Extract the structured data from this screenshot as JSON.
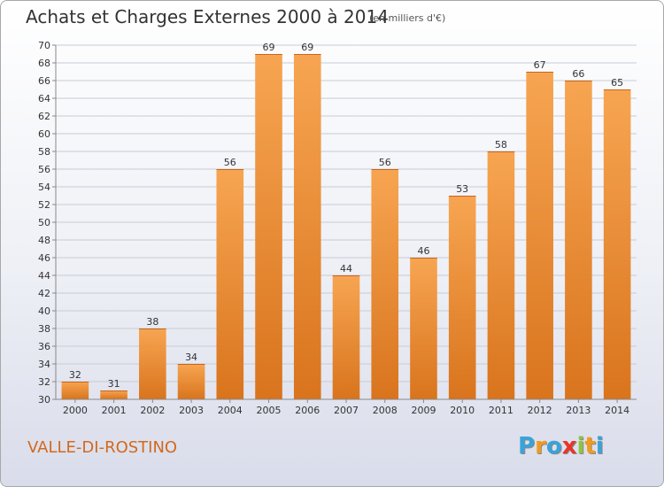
{
  "title": "Achats et Charges Externes 2000 à 2014",
  "unit_note": "(en milliers d'€)",
  "commune": "VALLE-DI-ROSTINO",
  "brand": {
    "letters": [
      "P",
      "r",
      "o",
      "x",
      "i",
      "t",
      "i"
    ],
    "colors": [
      "#3aa3d8",
      "#f39a1c",
      "#3aa3d8",
      "#e8352a",
      "#8cc63f",
      "#f39a1c",
      "#3aa3d8"
    ]
  },
  "colors": {
    "bar_top": "#f7a552",
    "bar_bottom": "#d9741d",
    "grid": "#c9cbd5",
    "axis": "#888888"
  },
  "chart_data": {
    "type": "bar",
    "categories": [
      "2000",
      "2001",
      "2002",
      "2003",
      "2004",
      "2005",
      "2006",
      "2007",
      "2008",
      "2009",
      "2010",
      "2011",
      "2012",
      "2013",
      "2014"
    ],
    "values": [
      32,
      31,
      38,
      34,
      56,
      69,
      69,
      44,
      56,
      46,
      53,
      58,
      67,
      66,
      65
    ],
    "ylim": [
      30,
      70
    ],
    "yticks": [
      30,
      32,
      34,
      36,
      38,
      40,
      42,
      44,
      46,
      48,
      50,
      52,
      54,
      56,
      58,
      60,
      62,
      64,
      66,
      68,
      70
    ],
    "grid": true,
    "data_labels": true
  }
}
